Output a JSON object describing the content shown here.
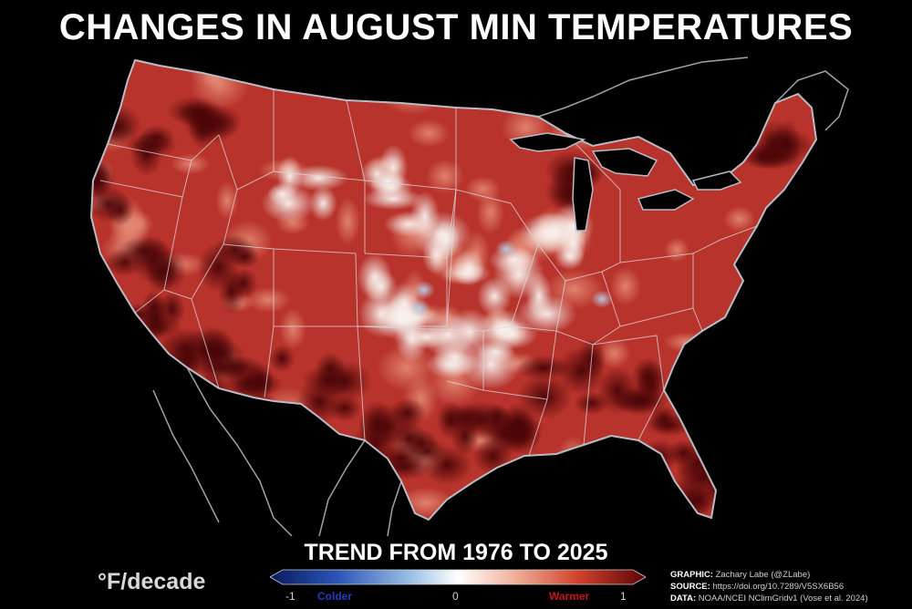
{
  "title": "CHANGES IN AUGUST MIN TEMPERATURES",
  "subtitle": "TREND FROM 1976 TO 2025",
  "units": "°F/decade",
  "colorbar": {
    "min_label": "-1",
    "mid_label": "0",
    "max_label": "1",
    "colder_label": "Colder",
    "warmer_label": "Warmer",
    "colder_color": "#1f3fbf",
    "warmer_color": "#c81414",
    "stops": [
      "#0a1a5c",
      "#2a55b8",
      "#9fc3e6",
      "#ffffff",
      "#f2b7a2",
      "#d0432b",
      "#5c0508"
    ]
  },
  "credits": {
    "graphic_key": "GRAPHIC:",
    "graphic_value": " Zachary Labe (@ZLabe)",
    "source_key": "SOURCE:",
    "source_value": " https://doi.org/10.7289/V5SX6B56",
    "data_key": "DATA:",
    "data_value": " NOAA/NCEI NClimGridv1 (Vose et al. 2024)"
  },
  "map": {
    "region": "Contiguous United States",
    "background": "#000000",
    "boundary_color": "#b8bcc4",
    "colors": {
      "dark_warm": "#5a0a0c",
      "warm": "#b8322a",
      "mild_warm": "#e28a78",
      "near_zero": "#f6ede8",
      "cool": "#c8d8ea"
    }
  }
}
